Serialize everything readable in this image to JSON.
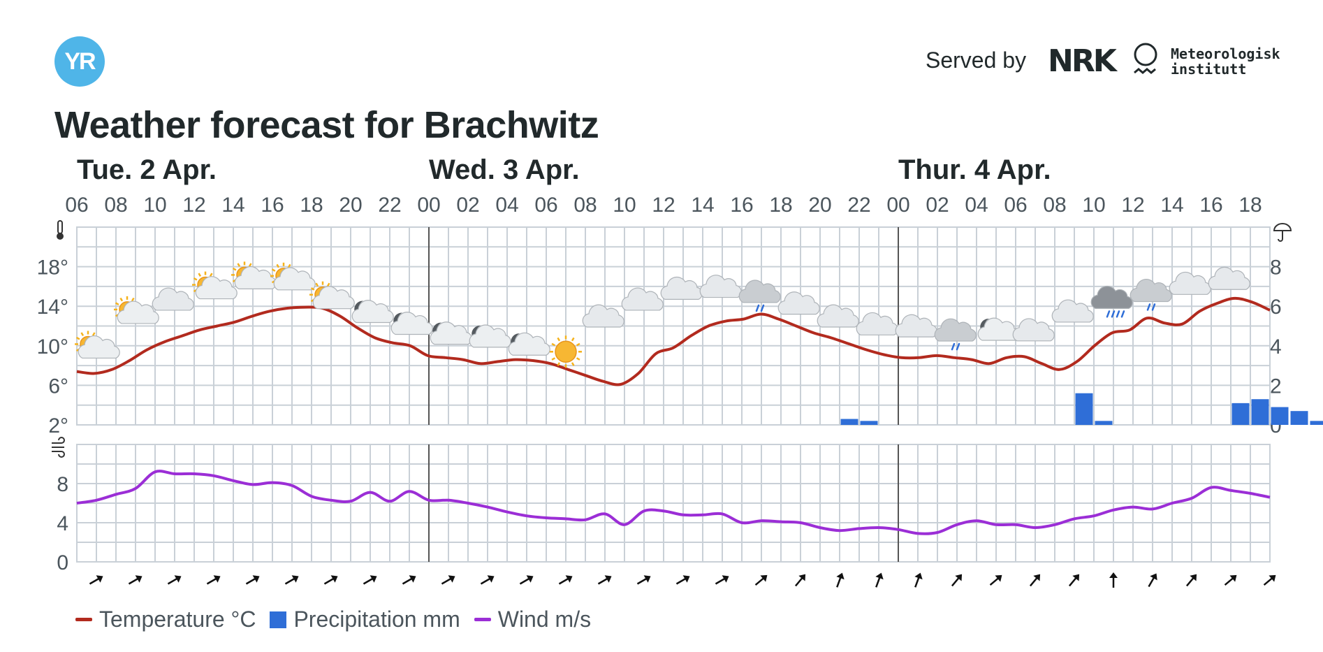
{
  "header": {
    "logo_text": "YR",
    "served_by": "Served by",
    "nrk_logo": "NRK",
    "met_line1": "Meteorologisk",
    "met_line2": "institutt",
    "title": "Weather forecast for Brachwitz"
  },
  "colors": {
    "temperature": "#b22a1e",
    "precipitation": "#2f6ed7",
    "wind": "#9b2ed6",
    "grid": "#c9d0d7"
  },
  "legend": {
    "temperature": "Temperature °C",
    "precipitation": "Precipitation mm",
    "wind": "Wind m/s"
  },
  "chart_data": {
    "type": "line",
    "day_labels": [
      {
        "label": "Tue. 2 Apr.",
        "hour_index": 0
      },
      {
        "label": "Wed. 3 Apr.",
        "hour_index": 18
      },
      {
        "label": "Thur. 4 Apr.",
        "hour_index": 42
      }
    ],
    "hour_labels": [
      "06",
      "08",
      "10",
      "12",
      "14",
      "16",
      "18",
      "20",
      "22",
      "00",
      "02",
      "04",
      "06",
      "08",
      "10",
      "12",
      "14",
      "16",
      "18",
      "20",
      "22",
      "00",
      "02",
      "04",
      "06",
      "08",
      "10",
      "12",
      "14",
      "16",
      "18"
    ],
    "temperature": {
      "name": "Temperature °C",
      "y_ticks": [
        "18°",
        "14°",
        "10°",
        "6°",
        "2°"
      ],
      "ylim": [
        2,
        22
      ],
      "values": [
        7.4,
        7.2,
        7.6,
        8.5,
        9.6,
        10.4,
        11.0,
        11.6,
        12.0,
        12.4,
        13.0,
        13.5,
        13.8,
        13.9,
        13.8,
        13.0,
        11.8,
        10.8,
        10.3,
        10.0,
        9.0,
        8.8,
        8.6,
        8.2,
        8.4,
        8.6,
        8.5,
        8.2,
        7.6,
        7.0,
        6.4,
        6.1,
        7.2,
        9.2,
        9.8,
        11.0,
        12.0,
        12.5,
        12.7,
        13.2,
        12.7,
        12.0,
        11.3,
        10.8,
        10.2,
        9.6,
        9.1,
        8.8,
        8.8,
        9.0,
        8.8,
        8.6,
        8.2,
        8.8,
        8.9,
        8.2,
        7.6,
        8.4,
        10.0,
        11.3,
        11.6,
        12.8,
        12.3,
        12.2,
        13.5,
        14.3,
        14.8,
        14.4,
        13.6
      ]
    },
    "precipitation": {
      "name": "Precipitation mm",
      "y_ticks": [
        "8",
        "6",
        "4",
        "2",
        "0"
      ],
      "ylim": [
        0,
        10
      ],
      "values": [
        0,
        0,
        0,
        0,
        0,
        0,
        0,
        0,
        0,
        0,
        0,
        0,
        0,
        0,
        0,
        0,
        0,
        0,
        0,
        0,
        0,
        0,
        0,
        0,
        0,
        0,
        0,
        0,
        0,
        0,
        0,
        0,
        0,
        0,
        0,
        0,
        0,
        0,
        0,
        0.3,
        0.2,
        0,
        0,
        0,
        0,
        0,
        0,
        0,
        0,
        0,
        0,
        1.6,
        0.2,
        0,
        0,
        0,
        0,
        0,
        0,
        1.1,
        1.3,
        0.9,
        0.7,
        0.2,
        0,
        0,
        0,
        0,
        0
      ]
    },
    "wind": {
      "name": "Wind m/s",
      "y_ticks": [
        "8",
        "4",
        "0"
      ],
      "ylim": [
        0,
        12
      ],
      "values": [
        6.0,
        6.3,
        6.9,
        7.5,
        9.2,
        9.0,
        9.0,
        8.8,
        8.3,
        7.9,
        8.1,
        7.8,
        6.7,
        6.3,
        6.2,
        7.1,
        6.2,
        7.2,
        6.3,
        6.3,
        6.0,
        5.6,
        5.1,
        4.7,
        4.5,
        4.4,
        4.3,
        4.9,
        3.8,
        5.2,
        5.2,
        4.8,
        4.8,
        4.9,
        4.0,
        4.2,
        4.1,
        4.0,
        3.5,
        3.2,
        3.4,
        3.5,
        3.3,
        2.9,
        3.0,
        3.8,
        4.2,
        3.8,
        3.8,
        3.5,
        3.8,
        4.4,
        4.7,
        5.3,
        5.6,
        5.4,
        6.0,
        6.5,
        7.6,
        7.3,
        7.0,
        6.6
      ],
      "directions_deg": [
        60,
        60,
        60,
        60,
        60,
        60,
        60,
        60,
        60,
        60,
        60,
        60,
        60,
        60,
        60,
        60,
        60,
        50,
        40,
        20,
        20,
        20,
        40,
        50,
        40,
        40,
        0,
        30,
        40,
        50,
        50
      ]
    },
    "symbols": [
      {
        "h": 1,
        "type": "partly-sunny",
        "temp": 9.6
      },
      {
        "h": 3,
        "type": "partly-sunny",
        "temp": 13.1
      },
      {
        "h": 5,
        "type": "cloudy",
        "temp": 14.3
      },
      {
        "h": 7,
        "type": "partly-sunny",
        "temp": 15.6
      },
      {
        "h": 9,
        "type": "partly-sunny",
        "temp": 16.6
      },
      {
        "h": 11,
        "type": "partly-sunny",
        "temp": 16.5
      },
      {
        "h": 13,
        "type": "partly-sunny",
        "temp": 14.6
      },
      {
        "h": 15,
        "type": "partly-night",
        "temp": 13.2
      },
      {
        "h": 17,
        "type": "partly-night",
        "temp": 12.0
      },
      {
        "h": 19,
        "type": "partly-night",
        "temp": 11.0
      },
      {
        "h": 21,
        "type": "partly-night",
        "temp": 10.7
      },
      {
        "h": 23,
        "type": "partly-night",
        "temp": 9.9
      },
      {
        "h": 25,
        "type": "sunny",
        "temp": 9.4
      },
      {
        "h": 27,
        "type": "cloudy",
        "temp": 12.6
      },
      {
        "h": 29,
        "type": "cloudy",
        "temp": 14.3
      },
      {
        "h": 31,
        "type": "cloudy",
        "temp": 15.4
      },
      {
        "h": 33,
        "type": "cloudy",
        "temp": 15.6
      },
      {
        "h": 35,
        "type": "light-rain",
        "temp": 14.8
      },
      {
        "h": 37,
        "type": "cloudy",
        "temp": 13.9
      },
      {
        "h": 39,
        "type": "cloudy",
        "temp": 12.6
      },
      {
        "h": 41,
        "type": "cloudy",
        "temp": 11.8
      },
      {
        "h": 43,
        "type": "cloudy",
        "temp": 11.6
      },
      {
        "h": 45,
        "type": "light-rain",
        "temp": 10.9
      },
      {
        "h": 47,
        "type": "partly-night",
        "temp": 11.4
      },
      {
        "h": 49,
        "type": "cloudy",
        "temp": 11.2
      },
      {
        "h": 51,
        "type": "cloudy",
        "temp": 13.1
      },
      {
        "h": 53,
        "type": "heavy-rain",
        "temp": 14.2
      },
      {
        "h": 55,
        "type": "light-rain",
        "temp": 14.9
      },
      {
        "h": 57,
        "type": "cloudy",
        "temp": 15.9
      },
      {
        "h": 59,
        "type": "cloudy",
        "temp": 16.4
      }
    ]
  }
}
